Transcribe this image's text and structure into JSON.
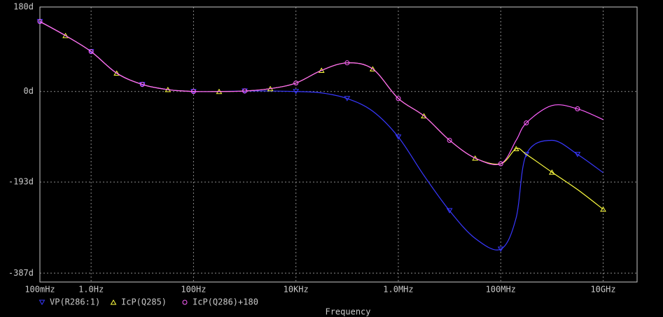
{
  "chart_data": {
    "type": "line",
    "x_label": "Frequency",
    "log_x": true,
    "grid": true,
    "xlim": [
      0.1,
      46000000000
    ],
    "ylim": [
      -406,
      180
    ],
    "xticks": [
      {
        "value": 0.1,
        "label": "100mHz"
      },
      {
        "value": 1,
        "label": "1.0Hz"
      },
      {
        "value": 100,
        "label": "100Hz"
      },
      {
        "value": 10000,
        "label": "10KHz"
      },
      {
        "value": 1000000,
        "label": "1.0MHz"
      },
      {
        "value": 100000000,
        "label": "100MHz"
      },
      {
        "value": 10000000000,
        "label": "10GHz"
      }
    ],
    "yticks": [
      {
        "value": 180,
        "label": "180d"
      },
      {
        "value": 0,
        "label": "0d"
      },
      {
        "value": -193,
        "label": "-193d"
      },
      {
        "value": -387,
        "label": "-387d"
      }
    ],
    "x": [
      0.1,
      0.316,
      1,
      3.16,
      10,
      31.6,
      100,
      316,
      1000,
      3160,
      10000,
      31600,
      100000,
      316000,
      1000000,
      3160000,
      10000000,
      31600000,
      100000000,
      200000000,
      316000000,
      1000000000,
      3160000000,
      10000000000
    ],
    "series": [
      {
        "name": "VP(R286:1)",
        "color": "#3838ff",
        "marker": "triangle-down",
        "values": [
          149,
          119,
          85,
          39,
          15,
          4,
          0,
          0,
          1,
          1,
          0,
          -3,
          -15,
          -42,
          -97,
          -179,
          -254,
          -313,
          -336,
          -269,
          -134,
          -104,
          -134,
          -173
        ]
      },
      {
        "name": "IcP(Q285)",
        "color": "#ffff40",
        "marker": "triangle-up",
        "values": [
          149,
          119,
          85,
          39,
          15,
          4,
          0,
          0,
          1,
          6,
          18,
          45,
          61,
          48,
          -15,
          -52,
          -104,
          -142,
          -154,
          -122,
          -134,
          -172,
          -209,
          -251
        ]
      },
      {
        "name": "IcP(Q286)+180",
        "color": "#ff60ff",
        "marker": "circle",
        "values": [
          149,
          119,
          85,
          39,
          15,
          4,
          0,
          0,
          1,
          6,
          18,
          45,
          61,
          48,
          -15,
          -52,
          -104,
          -142,
          -154,
          -104,
          -67,
          -30,
          -37,
          -60
        ]
      }
    ]
  }
}
